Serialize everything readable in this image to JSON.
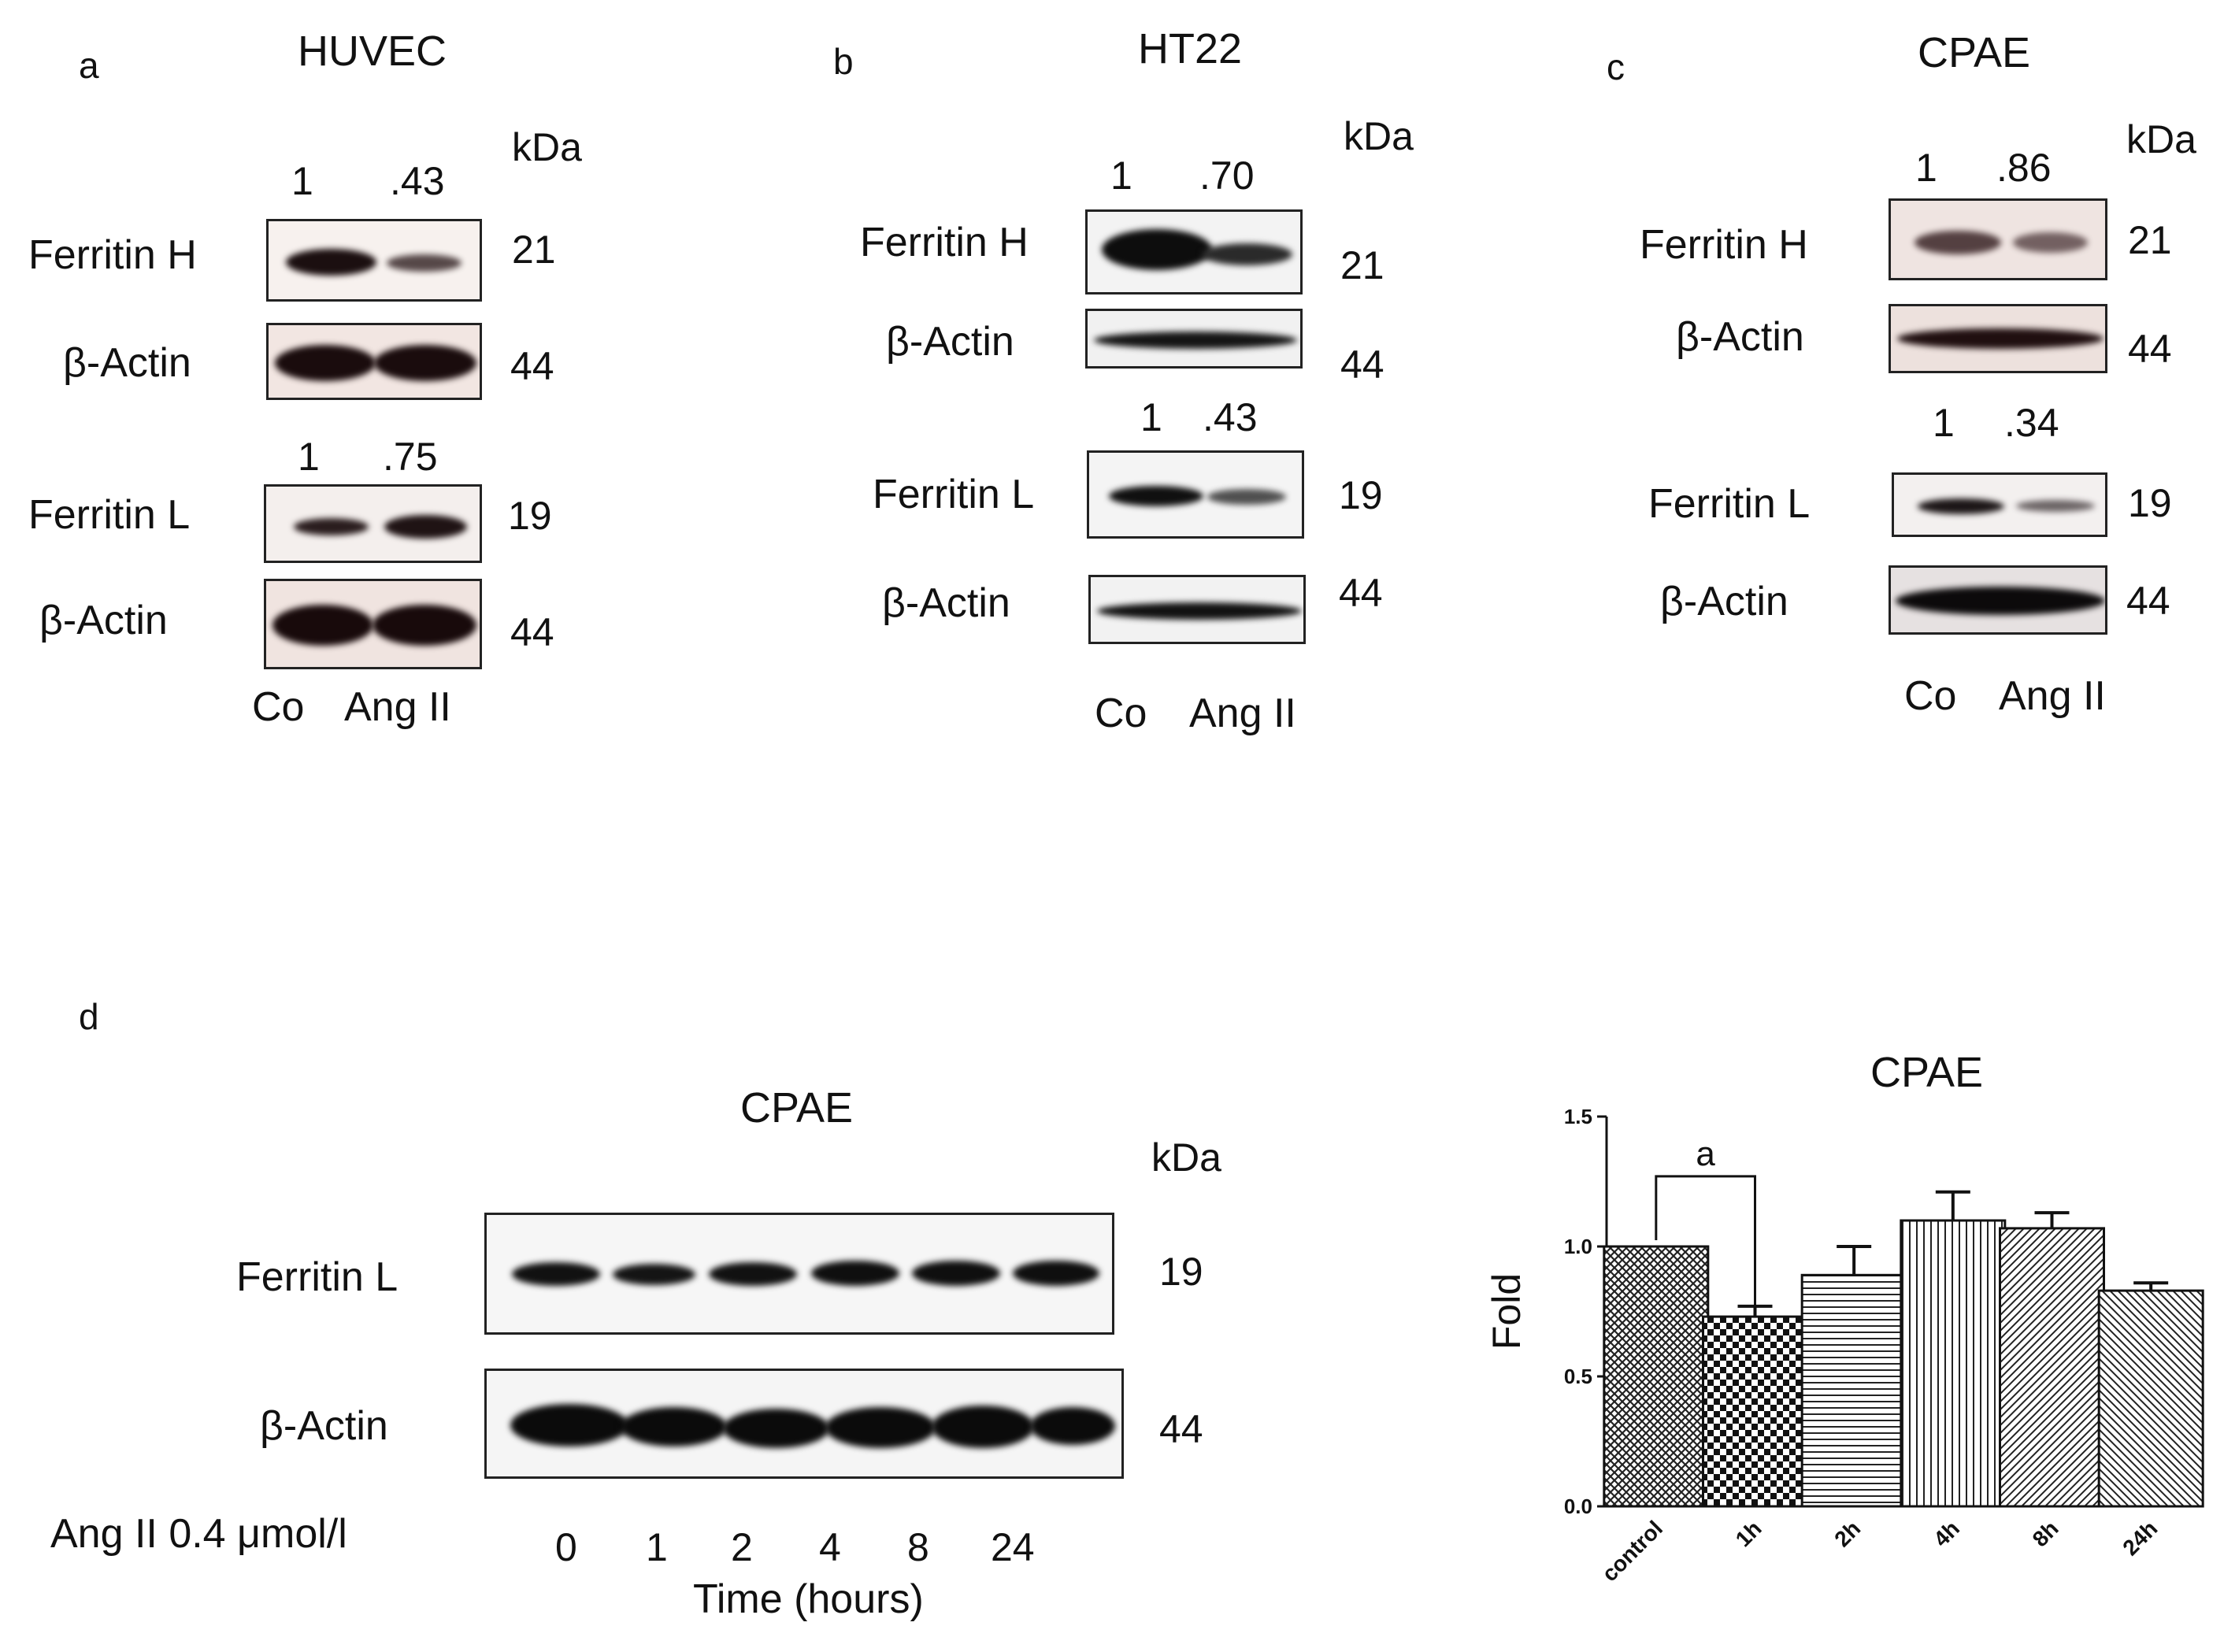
{
  "panel_a": {
    "letter": "a",
    "title": "HUVEC",
    "kda": "kDa",
    "row1": {
      "label": "Ferritin H",
      "q1": "1",
      "q2": ".43",
      "mw": "21"
    },
    "row2": {
      "label": "β-Actin",
      "mw": "44"
    },
    "row3": {
      "label": "Ferritin L",
      "q1": "1",
      "q2": ".75",
      "mw": "19"
    },
    "row4": {
      "label": "β-Actin",
      "mw": "44"
    },
    "lane1": "Co",
    "lane2": "Ang II"
  },
  "panel_b": {
    "letter": "b",
    "title": "HT22",
    "kda": "kDa",
    "row1": {
      "label": "Ferritin H",
      "q1": "1",
      "q2": ".70",
      "mw": "21"
    },
    "row2": {
      "label": "β-Actin",
      "mw": "44"
    },
    "row3": {
      "label": "Ferritin L",
      "q1": "1",
      "q2": ".43",
      "mw": "19"
    },
    "row4": {
      "label": "β-Actin",
      "mw": "44"
    },
    "lane1": "Co",
    "lane2": "Ang II"
  },
  "panel_c": {
    "letter": "c",
    "title": "CPAE",
    "kda": "kDa",
    "row1": {
      "label": "Ferritin H",
      "q1": "1",
      "q2": ".86",
      "mw": "21"
    },
    "row2": {
      "label": "β-Actin",
      "mw": "44"
    },
    "row3": {
      "label": "Ferritin L",
      "q1": "1",
      "q2": ".34",
      "mw": "19"
    },
    "row4": {
      "label": "β-Actin",
      "mw": "44"
    },
    "lane1": "Co",
    "lane2": "Ang II"
  },
  "panel_d": {
    "letter": "d",
    "title": "CPAE",
    "kda": "kDa",
    "row1": {
      "label": "Ferritin L",
      "mw": "19"
    },
    "row2": {
      "label": "β-Actin",
      "mw": "44"
    },
    "treatment": "Ang II 0.4 μmol/l",
    "timepoints": [
      "0",
      "1",
      "2",
      "4",
      "8",
      "24"
    ],
    "time_label": "Time (hours)"
  },
  "chart_data": {
    "type": "bar",
    "title": "CPAE",
    "xlabel": "",
    "ylabel": "Fold",
    "categories": [
      "control",
      "1h",
      "2h",
      "4h",
      "8h",
      "24h"
    ],
    "values": [
      1.0,
      0.73,
      0.89,
      1.1,
      1.07,
      0.83
    ],
    "errors": [
      0.0,
      0.04,
      0.11,
      0.11,
      0.06,
      0.03
    ],
    "ylim": [
      0,
      1.5
    ],
    "yticks": [
      "0.0",
      "0.5",
      "1.0",
      "1.5"
    ],
    "annotation": "a",
    "grid": false,
    "patterns": [
      "crosshatch",
      "checker",
      "horizontal",
      "vertical",
      "diagonal-right",
      "diagonal-left"
    ]
  }
}
